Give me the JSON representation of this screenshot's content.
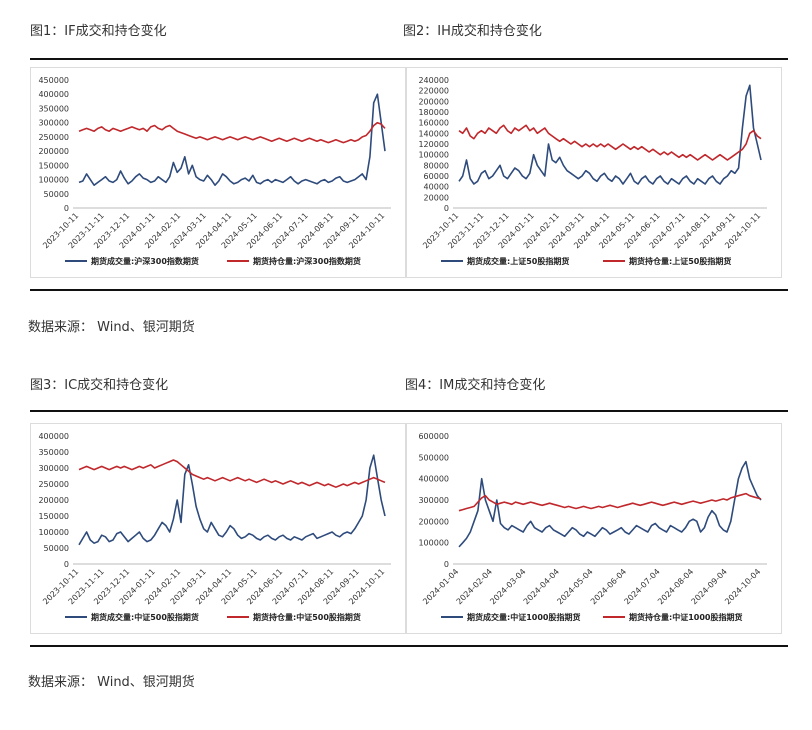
{
  "figures": [
    {
      "title": "图1：IF成交和持仓变化"
    },
    {
      "title": "图2：IH成交和持仓变化"
    },
    {
      "title": "图3：IC成交和持仓变化"
    },
    {
      "title": "图4：IM成交和持仓变化"
    }
  ],
  "source_text": "数据来源：  Wind、银河期货",
  "colors": {
    "volume": "#2e4b7c",
    "oi": "#c0282c"
  },
  "chart_data": [
    {
      "type": "line",
      "ylim": [
        0,
        450000
      ],
      "yticks": [
        "450000",
        "400000",
        "350000",
        "300000",
        "250000",
        "200000",
        "150000",
        "100000",
        "50000",
        "0"
      ],
      "xticks": [
        "2023-10-11",
        "2023-11-11",
        "2023-12-11",
        "2024-01-11",
        "2024-02-11",
        "2024-03-11",
        "2024-04-11",
        "2024-05-11",
        "2024-06-11",
        "2024-07-11",
        "2024-08-11",
        "2024-09-11",
        "2024-10-11"
      ],
      "series": [
        {
          "name": "期货成交量:沪深300指数期货",
          "values": [
            90000,
            95000,
            120000,
            100000,
            80000,
            90000,
            100000,
            110000,
            95000,
            90000,
            100000,
            130000,
            105000,
            85000,
            95000,
            110000,
            120000,
            105000,
            100000,
            90000,
            95000,
            110000,
            100000,
            90000,
            110000,
            160000,
            125000,
            140000,
            180000,
            120000,
            150000,
            110000,
            100000,
            95000,
            115000,
            100000,
            80000,
            95000,
            120000,
            110000,
            95000,
            85000,
            90000,
            100000,
            105000,
            95000,
            115000,
            90000,
            85000,
            95000,
            100000,
            90000,
            100000,
            95000,
            90000,
            100000,
            110000,
            95000,
            85000,
            95000,
            100000,
            95000,
            90000,
            85000,
            95000,
            100000,
            90000,
            95000,
            105000,
            110000,
            95000,
            90000,
            95000,
            100000,
            110000,
            120000,
            100000,
            180000,
            370000,
            400000,
            300000,
            200000
          ]
        },
        {
          "name": "期货持仓量:沪深300指数期货",
          "values": [
            270000,
            275000,
            280000,
            275000,
            270000,
            280000,
            285000,
            275000,
            270000,
            280000,
            275000,
            270000,
            275000,
            280000,
            285000,
            280000,
            275000,
            280000,
            270000,
            285000,
            290000,
            280000,
            275000,
            285000,
            290000,
            280000,
            270000,
            265000,
            260000,
            255000,
            250000,
            245000,
            250000,
            245000,
            240000,
            245000,
            250000,
            245000,
            240000,
            245000,
            250000,
            245000,
            240000,
            245000,
            250000,
            245000,
            240000,
            245000,
            250000,
            245000,
            240000,
            235000,
            240000,
            245000,
            240000,
            235000,
            240000,
            245000,
            240000,
            235000,
            240000,
            245000,
            240000,
            235000,
            240000,
            235000,
            230000,
            235000,
            240000,
            235000,
            230000,
            235000,
            240000,
            235000,
            240000,
            250000,
            255000,
            270000,
            290000,
            300000,
            295000,
            280000
          ]
        }
      ]
    },
    {
      "type": "line",
      "ylim": [
        0,
        240000
      ],
      "yticks": [
        "240000",
        "220000",
        "200000",
        "180000",
        "160000",
        "140000",
        "120000",
        "100000",
        "80000",
        "60000",
        "40000",
        "20000",
        "0"
      ],
      "xticks": [
        "2023-10-11",
        "2023-11-11",
        "2023-12-11",
        "2024-01-11",
        "2024-02-11",
        "2024-03-11",
        "2024-04-11",
        "2024-05-11",
        "2024-06-11",
        "2024-07-11",
        "2024-08-11",
        "2024-09-11",
        "2024-10-11"
      ],
      "series": [
        {
          "name": "期货成交量:上证50股指期货",
          "values": [
            50000,
            60000,
            90000,
            55000,
            45000,
            50000,
            65000,
            70000,
            55000,
            60000,
            70000,
            80000,
            60000,
            55000,
            65000,
            75000,
            70000,
            60000,
            55000,
            65000,
            100000,
            80000,
            70000,
            60000,
            120000,
            90000,
            85000,
            95000,
            80000,
            70000,
            65000,
            60000,
            55000,
            60000,
            70000,
            65000,
            55000,
            50000,
            60000,
            65000,
            55000,
            50000,
            60000,
            55000,
            45000,
            55000,
            65000,
            50000,
            45000,
            55000,
            60000,
            50000,
            45000,
            55000,
            60000,
            50000,
            45000,
            55000,
            50000,
            45000,
            55000,
            60000,
            50000,
            45000,
            55000,
            50000,
            45000,
            55000,
            60000,
            50000,
            45000,
            55000,
            60000,
            70000,
            65000,
            75000,
            150000,
            210000,
            230000,
            150000,
            120000,
            90000
          ]
        },
        {
          "name": "期货持仓量:上证50股指期货",
          "values": [
            145000,
            140000,
            150000,
            135000,
            130000,
            140000,
            145000,
            140000,
            150000,
            145000,
            140000,
            150000,
            155000,
            145000,
            140000,
            150000,
            145000,
            150000,
            155000,
            145000,
            150000,
            140000,
            145000,
            150000,
            140000,
            135000,
            130000,
            125000,
            130000,
            125000,
            120000,
            125000,
            120000,
            115000,
            120000,
            115000,
            120000,
            115000,
            120000,
            115000,
            120000,
            115000,
            110000,
            115000,
            120000,
            115000,
            110000,
            115000,
            110000,
            115000,
            110000,
            105000,
            110000,
            105000,
            100000,
            105000,
            100000,
            105000,
            100000,
            95000,
            100000,
            95000,
            100000,
            95000,
            90000,
            95000,
            100000,
            95000,
            90000,
            95000,
            100000,
            95000,
            90000,
            95000,
            100000,
            105000,
            110000,
            120000,
            140000,
            145000,
            135000,
            130000
          ]
        }
      ]
    },
    {
      "type": "line",
      "ylim": [
        0,
        400000
      ],
      "yticks": [
        "400000",
        "350000",
        "300000",
        "250000",
        "200000",
        "150000",
        "100000",
        "50000",
        "0"
      ],
      "xticks": [
        "2023-10-11",
        "2023-11-11",
        "2023-12-11",
        "2024-01-11",
        "2024-02-11",
        "2024-03-11",
        "2024-04-11",
        "2024-05-11",
        "2024-06-11",
        "2024-07-11",
        "2024-08-11",
        "2024-09-11",
        "2024-10-11"
      ],
      "series": [
        {
          "name": "期货成交量:中证500股指期货",
          "values": [
            60000,
            80000,
            100000,
            75000,
            65000,
            70000,
            90000,
            85000,
            70000,
            75000,
            95000,
            100000,
            85000,
            70000,
            80000,
            90000,
            100000,
            80000,
            70000,
            75000,
            90000,
            110000,
            130000,
            120000,
            100000,
            140000,
            200000,
            130000,
            280000,
            310000,
            250000,
            180000,
            140000,
            110000,
            100000,
            130000,
            110000,
            90000,
            85000,
            100000,
            120000,
            110000,
            90000,
            80000,
            85000,
            95000,
            90000,
            80000,
            75000,
            85000,
            90000,
            80000,
            75000,
            85000,
            90000,
            80000,
            75000,
            85000,
            80000,
            75000,
            85000,
            90000,
            95000,
            80000,
            85000,
            90000,
            95000,
            100000,
            90000,
            85000,
            95000,
            100000,
            95000,
            110000,
            130000,
            150000,
            200000,
            300000,
            340000,
            270000,
            200000,
            150000
          ]
        },
        {
          "name": "期货持仓量:中证500股指期货",
          "values": [
            295000,
            300000,
            305000,
            300000,
            295000,
            300000,
            305000,
            300000,
            295000,
            300000,
            305000,
            300000,
            305000,
            300000,
            295000,
            300000,
            305000,
            300000,
            305000,
            310000,
            300000,
            305000,
            310000,
            315000,
            320000,
            325000,
            320000,
            310000,
            300000,
            290000,
            280000,
            275000,
            270000,
            265000,
            270000,
            265000,
            260000,
            265000,
            270000,
            265000,
            260000,
            265000,
            270000,
            265000,
            260000,
            265000,
            260000,
            255000,
            260000,
            265000,
            260000,
            255000,
            260000,
            255000,
            250000,
            255000,
            260000,
            255000,
            250000,
            255000,
            250000,
            245000,
            250000,
            255000,
            250000,
            245000,
            250000,
            245000,
            240000,
            245000,
            250000,
            245000,
            250000,
            255000,
            250000,
            255000,
            260000,
            265000,
            270000,
            265000,
            260000,
            255000
          ]
        }
      ]
    },
    {
      "type": "line",
      "ylim": [
        0,
        600000
      ],
      "yticks": [
        "600000",
        "500000",
        "400000",
        "300000",
        "200000",
        "100000",
        "0"
      ],
      "xticks": [
        "2024-01-04",
        "2024-02-04",
        "2024-03-04",
        "2024-04-04",
        "2024-05-04",
        "2024-06-04",
        "2024-07-04",
        "2024-08-04",
        "2024-09-04",
        "2024-10-04"
      ],
      "series": [
        {
          "name": "期货成交量:中证1000股指期货",
          "values": [
            80000,
            100000,
            120000,
            150000,
            200000,
            250000,
            400000,
            300000,
            250000,
            200000,
            300000,
            190000,
            170000,
            160000,
            180000,
            170000,
            160000,
            150000,
            180000,
            200000,
            170000,
            160000,
            150000,
            170000,
            180000,
            160000,
            150000,
            140000,
            130000,
            150000,
            170000,
            160000,
            140000,
            130000,
            150000,
            140000,
            130000,
            150000,
            170000,
            160000,
            140000,
            150000,
            160000,
            170000,
            150000,
            140000,
            160000,
            180000,
            170000,
            160000,
            150000,
            180000,
            190000,
            170000,
            160000,
            150000,
            180000,
            170000,
            160000,
            150000,
            170000,
            200000,
            210000,
            200000,
            150000,
            170000,
            220000,
            250000,
            230000,
            180000,
            160000,
            150000,
            200000,
            300000,
            400000,
            450000,
            480000,
            400000,
            360000,
            320000,
            300000
          ]
        },
        {
          "name": "期货持仓量:中证1000股指期货",
          "values": [
            250000,
            255000,
            260000,
            265000,
            270000,
            290000,
            310000,
            320000,
            300000,
            290000,
            280000,
            285000,
            290000,
            285000,
            280000,
            290000,
            285000,
            280000,
            285000,
            290000,
            285000,
            280000,
            275000,
            280000,
            285000,
            280000,
            275000,
            270000,
            265000,
            270000,
            265000,
            260000,
            265000,
            270000,
            265000,
            260000,
            265000,
            270000,
            265000,
            270000,
            275000,
            270000,
            265000,
            270000,
            275000,
            280000,
            285000,
            280000,
            275000,
            280000,
            285000,
            290000,
            285000,
            280000,
            275000,
            280000,
            285000,
            290000,
            285000,
            280000,
            285000,
            290000,
            295000,
            290000,
            285000,
            290000,
            295000,
            300000,
            295000,
            300000,
            305000,
            300000,
            310000,
            315000,
            320000,
            325000,
            330000,
            320000,
            315000,
            310000,
            305000
          ]
        }
      ]
    }
  ]
}
